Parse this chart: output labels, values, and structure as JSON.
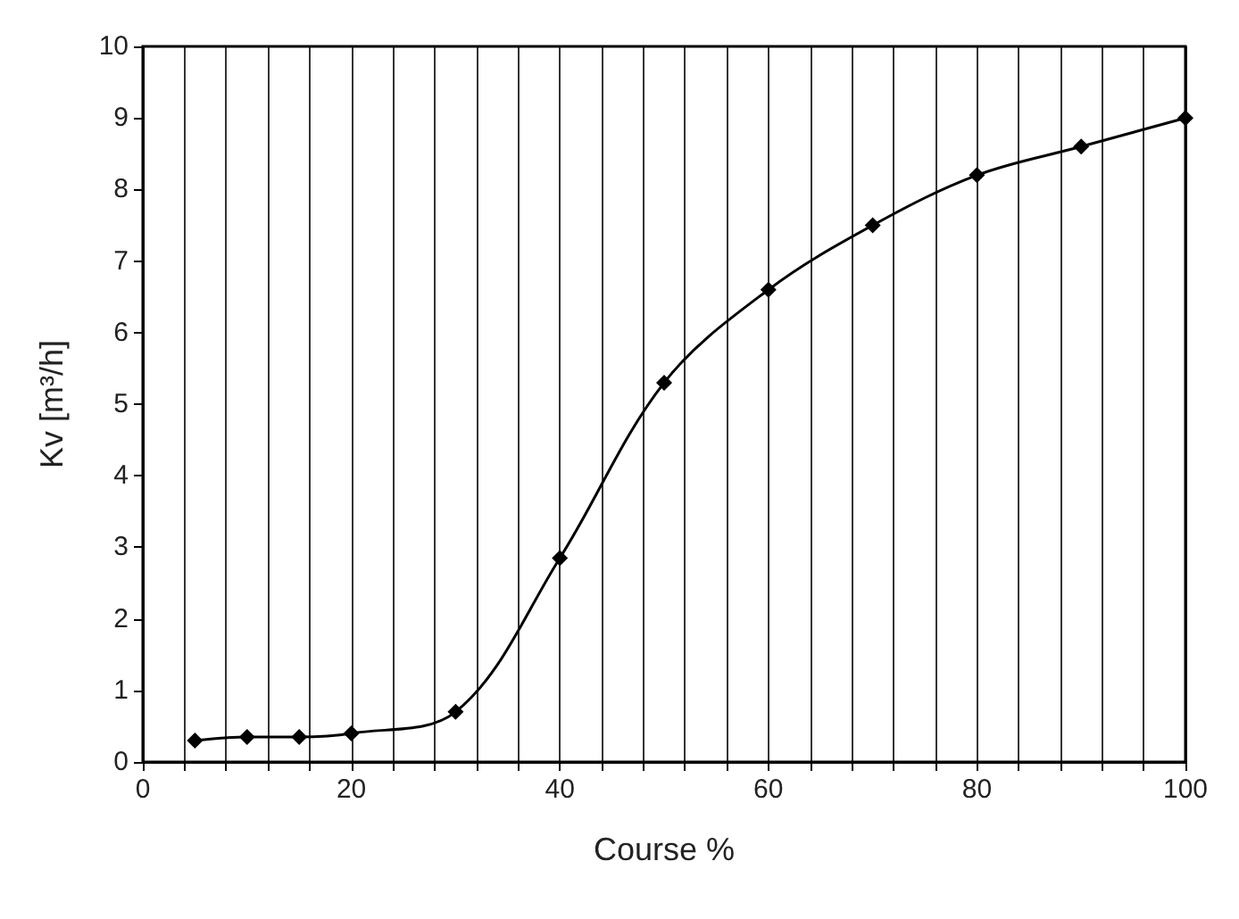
{
  "chart_data": {
    "type": "line",
    "xlabel": "Course %",
    "ylabel": "Kv [m³/h]",
    "x": [
      5,
      10,
      15,
      20,
      30,
      40,
      50,
      60,
      70,
      80,
      90,
      100
    ],
    "series": [
      {
        "color": "#000000",
        "values": [
          0.3,
          0.35,
          0.35,
          0.4,
          0.7,
          2.85,
          5.3,
          6.6,
          7.5,
          8.2,
          8.6,
          9.0
        ]
      }
    ],
    "xlim": [
      0,
      100
    ],
    "xticks": [
      0,
      {
        "value": 4,
        "label": null
      },
      {
        "value": 8,
        "label": null
      },
      {
        "value": 12,
        "label": null
      },
      {
        "value": 16,
        "label": null
      },
      20,
      {
        "value": 24,
        "label": null
      },
      {
        "value": 28,
        "label": null
      },
      {
        "value": 32,
        "label": null
      },
      {
        "value": 36,
        "label": null
      },
      40,
      {
        "value": 44,
        "label": null
      },
      {
        "value": 48,
        "label": null
      },
      {
        "value": 52,
        "label": null
      },
      {
        "value": 56,
        "label": null
      },
      60,
      {
        "value": 64,
        "label": null
      },
      {
        "value": 68,
        "label": null
      },
      {
        "value": 72,
        "label": null
      },
      {
        "value": 76,
        "label": null
      },
      80,
      {
        "value": 84,
        "label": null
      },
      {
        "value": 88,
        "label": null
      },
      {
        "value": 92,
        "label": null
      },
      {
        "value": 96,
        "label": null
      },
      100
    ],
    "ylim": [
      0,
      10
    ],
    "yticks": [
      0,
      1,
      2,
      3,
      4,
      5,
      6,
      7,
      8,
      9,
      10
    ],
    "grid": "x",
    "marker": "diamond",
    "line_style": "solid"
  }
}
